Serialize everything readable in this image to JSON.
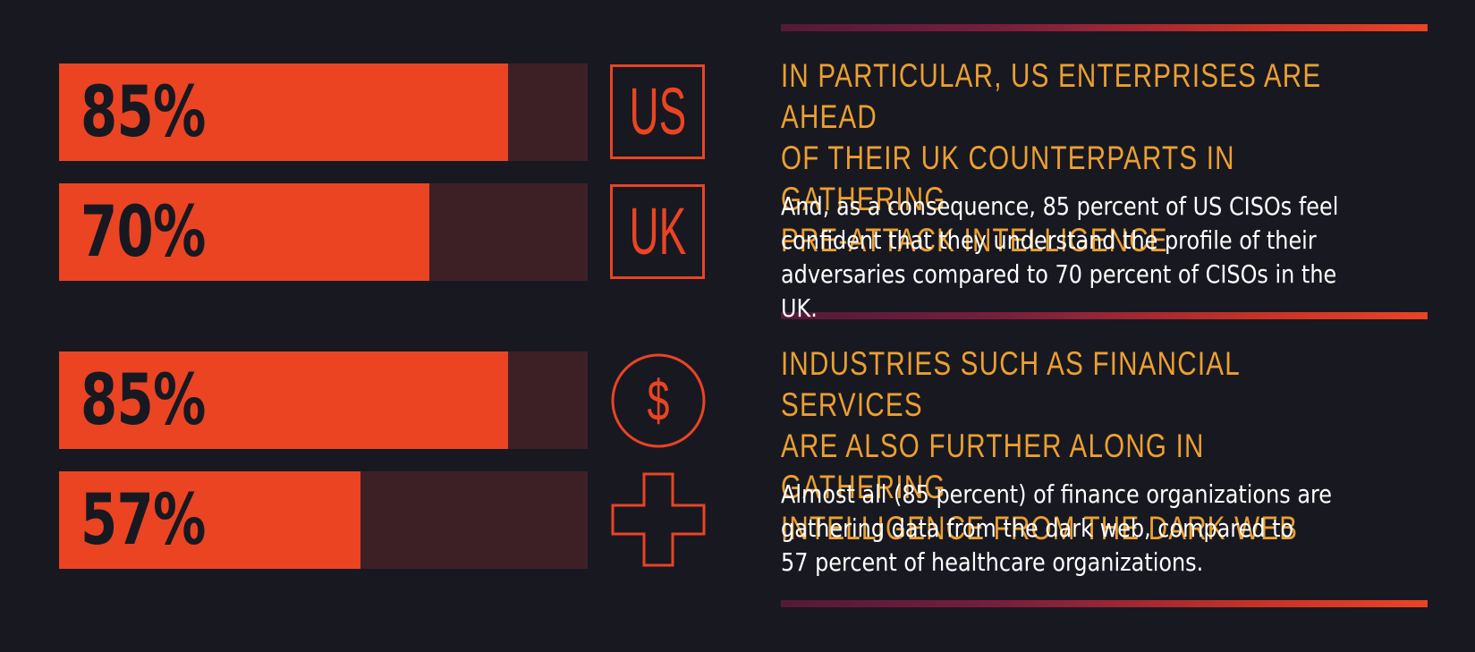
{
  "chart_data": [
    {
      "type": "bar",
      "orientation": "horizontal",
      "categories": [
        "US",
        "UK"
      ],
      "values": [
        85,
        70
      ],
      "value_labels": [
        "85%",
        "70%"
      ],
      "xlim": [
        0,
        100
      ]
    },
    {
      "type": "bar",
      "orientation": "horizontal",
      "categories": [
        "Financial services",
        "Healthcare"
      ],
      "values": [
        85,
        57
      ],
      "value_labels": [
        "85%",
        "57%"
      ],
      "xlim": [
        0,
        100
      ]
    }
  ],
  "icons": {
    "us": "US",
    "uk": "UK",
    "finance": "$",
    "health": "plus-cross-icon"
  },
  "colors": {
    "background": "#181821",
    "bar_fill": "#ea4423",
    "bar_track": "#3d2026",
    "heading": "#eba030",
    "body_text": "#ffffff"
  },
  "sections": [
    {
      "heading": "IN PARTICULAR, US ENTERPRISES ARE AHEAD\nOF THEIR UK COUNTERPARTS IN GATHERING\nPRE-ATTACK INTELLIGENCE",
      "body": "And, as a consequence, 85 percent of US CISOs feel\nconfident that they understand the profile of their\nadversaries compared to 70 percent of CISOs in the UK."
    },
    {
      "heading": "INDUSTRIES SUCH AS FINANCIAL SERVICES\nARE ALSO FURTHER ALONG IN GATHERING\nINTELLIGENCE FROM THE DARK WEB",
      "body": "Almost all (85 percent) of finance organizations are\ngathering data from the dark web, compared to\n57 percent of healthcare organizations."
    }
  ]
}
